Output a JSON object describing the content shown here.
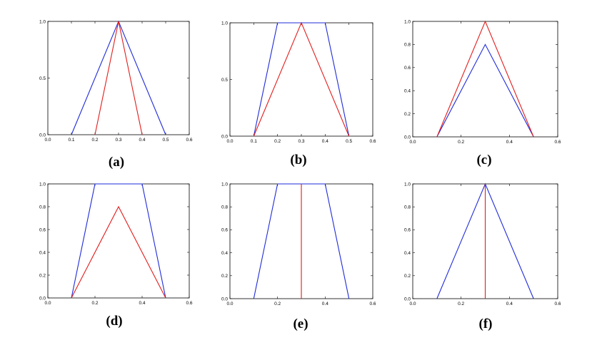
{
  "chart_data": [
    {
      "id": "a",
      "type": "line",
      "caption": "(a)",
      "xlim": [
        0,
        0.6
      ],
      "ylim": [
        0,
        1
      ],
      "xticks": [
        "0.0",
        "0.1",
        "0.2",
        "0.3",
        "0.4",
        "0.5",
        "0.6"
      ],
      "yticks": [
        "0.0",
        "0.5",
        "1.0"
      ],
      "series": [
        {
          "color": "#1f2bd8",
          "x": [
            0.1,
            0.3,
            0.5
          ],
          "y": [
            0,
            1,
            0
          ]
        },
        {
          "color": "#e31d1d",
          "x": [
            0.2,
            0.3,
            0.4
          ],
          "y": [
            0,
            1,
            0
          ]
        }
      ]
    },
    {
      "id": "b",
      "type": "line",
      "caption": "(b)",
      "xlim": [
        0,
        0.6
      ],
      "ylim": [
        0,
        1
      ],
      "xticks": [
        "0.0",
        "0.1",
        "0.2",
        "0.3",
        "0.4",
        "0.5",
        "0.6"
      ],
      "yticks": [
        "0.0",
        "0.5",
        "1.0"
      ],
      "series": [
        {
          "color": "#1f2bd8",
          "x": [
            0.1,
            0.2,
            0.4,
            0.5
          ],
          "y": [
            0,
            1,
            1,
            0
          ]
        },
        {
          "color": "#e31d1d",
          "x": [
            0.1,
            0.3,
            0.5
          ],
          "y": [
            0,
            1,
            0
          ]
        }
      ]
    },
    {
      "id": "c",
      "type": "line",
      "caption": "(c)",
      "xlim": [
        0,
        0.6
      ],
      "ylim": [
        0,
        1
      ],
      "xticks": [
        "0.0",
        "0.2",
        "0.4",
        "0.6"
      ],
      "yticks": [
        "0.0",
        "0.2",
        "0.4",
        "0.6",
        "0.8",
        "1.0"
      ],
      "series": [
        {
          "color": "#1f2bd8",
          "x": [
            0.1,
            0.3,
            0.5
          ],
          "y": [
            0,
            0.8,
            0
          ]
        },
        {
          "color": "#e31d1d",
          "x": [
            0.1,
            0.3,
            0.5
          ],
          "y": [
            0,
            1,
            0
          ]
        }
      ]
    },
    {
      "id": "d",
      "type": "line",
      "caption": "(d)",
      "xlim": [
        0,
        0.6
      ],
      "ylim": [
        0,
        1
      ],
      "xticks": [
        "0.0",
        "0.2",
        "0.4",
        "0.6"
      ],
      "yticks": [
        "0.0",
        "0.2",
        "0.4",
        "0.6",
        "0.8",
        "1.0"
      ],
      "series": [
        {
          "color": "#1f2bd8",
          "x": [
            0.1,
            0.2,
            0.4,
            0.5
          ],
          "y": [
            0,
            1,
            1,
            0
          ]
        },
        {
          "color": "#e31d1d",
          "x": [
            0.1,
            0.3,
            0.5
          ],
          "y": [
            0,
            0.8,
            0
          ]
        }
      ]
    },
    {
      "id": "e",
      "type": "line",
      "caption": "(e)",
      "xlim": [
        0,
        0.6
      ],
      "ylim": [
        0,
        1
      ],
      "xticks": [
        "0.0",
        "0.2",
        "0.4",
        "0.6"
      ],
      "yticks": [
        "0.0",
        "0.2",
        "0.4",
        "0.6",
        "0.8",
        "1.0"
      ],
      "series": [
        {
          "color": "#1f2bd8",
          "x": [
            0.1,
            0.2,
            0.4,
            0.5
          ],
          "y": [
            0,
            1,
            1,
            0
          ]
        },
        {
          "color": "#e31d1d",
          "x": [
            0.3,
            0.3
          ],
          "y": [
            0,
            1
          ]
        }
      ]
    },
    {
      "id": "f",
      "type": "line",
      "caption": "(f)",
      "xlim": [
        0,
        0.6
      ],
      "ylim": [
        0,
        1
      ],
      "xticks": [
        "0.0",
        "0.2",
        "0.4",
        "0.6"
      ],
      "yticks": [
        "0.0",
        "0.2",
        "0.4",
        "0.6",
        "0.8",
        "1.0"
      ],
      "series": [
        {
          "color": "#1f2bd8",
          "x": [
            0.1,
            0.3,
            0.5
          ],
          "y": [
            0,
            1,
            0
          ]
        },
        {
          "color": "#e31d1d",
          "x": [
            0.3,
            0.3
          ],
          "y": [
            0,
            1
          ]
        }
      ]
    }
  ]
}
